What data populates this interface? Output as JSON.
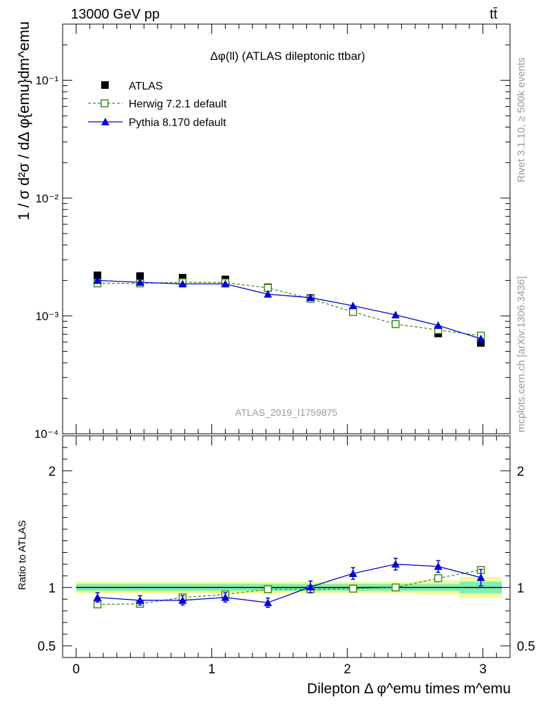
{
  "header": {
    "energy_label": "13000 GeV pp",
    "process_label": "tt̄"
  },
  "side_labels": {
    "rivet": "Rivet 3.1.10, ≥ 500k events",
    "mcplots": "mcplots.cern.ch [arXiv:1306.3436]"
  },
  "chart_data": [
    {
      "type": "scatter",
      "panel": "main",
      "title": "Δφ(ll) (ATLAS dileptonic ttbar)",
      "watermark": "ATLAS_2019_I1759875",
      "ylabel": "1 / σ  d²σ / dΔ φ{emu}dm^emu",
      "yscale": "log",
      "ylim": [
        0.0001,
        0.3
      ],
      "xlim": [
        -0.1,
        3.2
      ],
      "ytick_labels": [
        "10⁻⁴",
        "10⁻³",
        "10⁻²",
        "10⁻¹"
      ],
      "legend_position": "top-left",
      "x": [
        0.157,
        0.471,
        0.785,
        1.1,
        1.414,
        1.728,
        2.042,
        2.356,
        2.67,
        2.985
      ],
      "series": [
        {
          "name": "ATLAS",
          "marker": "square-filled",
          "color": "#000000",
          "values": [
            0.00221,
            0.00218,
            0.00211,
            0.00204,
            0.00175,
            0.00142,
            0.00109,
            0.000853,
            0.00071,
            0.00059
          ]
        },
        {
          "name": "Herwig 7.2.1 default",
          "marker": "square-open",
          "line": "dashed",
          "color": "#3d8c14",
          "values": [
            0.00189,
            0.00189,
            0.00193,
            0.00192,
            0.00173,
            0.0014,
            0.00108,
            0.000853,
            0.00076,
            0.00068
          ]
        },
        {
          "name": "Pythia 8.170 default",
          "marker": "triangle-filled",
          "line": "solid",
          "color": "#0000e0",
          "values": [
            0.002,
            0.00193,
            0.00187,
            0.00187,
            0.00153,
            0.00143,
            0.00122,
            0.00102,
            0.00083,
            0.00064
          ]
        }
      ]
    },
    {
      "type": "scatter",
      "panel": "ratio",
      "ylabel": "Ratio to ATLAS",
      "xlabel": "Dilepton Δ φ^emu times m^emu",
      "ylim": [
        0.4,
        2.3
      ],
      "ytick_labels": [
        "0.5",
        "1",
        "2"
      ],
      "xtick_labels": [
        "0",
        "1",
        "2",
        "3"
      ],
      "x": [
        0.157,
        0.471,
        0.785,
        1.1,
        1.414,
        1.728,
        2.042,
        2.356,
        2.67,
        2.985
      ],
      "series": [
        {
          "name": "Herwig 7.2.1 default",
          "color": "#3d8c14",
          "values": [
            0.855,
            0.86,
            0.915,
            0.94,
            0.985,
            0.985,
            0.99,
            1.0,
            1.08,
            1.15
          ]
        },
        {
          "name": "Pythia 8.170 default",
          "color": "#0000e0",
          "values": [
            0.915,
            0.89,
            0.89,
            0.915,
            0.87,
            1.005,
            1.12,
            1.2,
            1.18,
            1.085
          ],
          "errors": [
            0.04,
            0.04,
            0.04,
            0.04,
            0.04,
            0.05,
            0.05,
            0.05,
            0.05,
            0.07
          ]
        }
      ],
      "band_inner_color": "#7ff0b0",
      "band_outer_color": "#f4f99a",
      "band_inner": [
        0.03,
        0.03,
        0.03,
        0.03,
        0.03,
        0.03,
        0.03,
        0.03,
        0.03,
        0.05
      ],
      "band_outer": [
        0.05,
        0.05,
        0.05,
        0.05,
        0.05,
        0.05,
        0.05,
        0.05,
        0.06,
        0.09
      ]
    }
  ]
}
